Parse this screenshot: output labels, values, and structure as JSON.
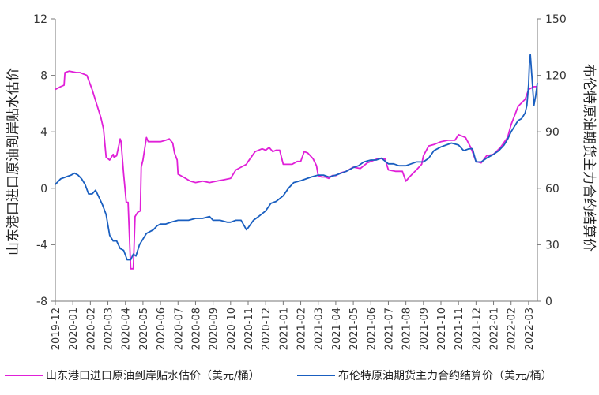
{
  "chart_data": {
    "type": "line",
    "title": "",
    "y_left": {
      "label": "山东港口进口原油到岸贴水估价",
      "range": [
        -8,
        12
      ],
      "ticks": [
        "-8",
        "-4",
        "0",
        "4",
        "8",
        "12"
      ]
    },
    "y_right": {
      "label": "布伦特原油期货主力合约结算价",
      "range": [
        0,
        150
      ],
      "ticks": [
        "0",
        "30",
        "60",
        "90",
        "120",
        "150"
      ]
    },
    "x_ticks": [
      "2019-12",
      "2020-01",
      "2020-02",
      "2020-03",
      "2020-04",
      "2020-05",
      "2020-06",
      "2020-07",
      "2020-08",
      "2020-09",
      "2020-10",
      "2020-11",
      "2020-12",
      "2021-01",
      "2021-02",
      "2021-03",
      "2021-04",
      "2021-05",
      "2021-06",
      "2021-07",
      "2021-08",
      "2021-09",
      "2021-10",
      "2021-11",
      "2021-12",
      "2022-01",
      "2022-02",
      "2022-03"
    ],
    "grid": false,
    "legend_position": "bottom",
    "series": [
      {
        "name": "山东港口进口原油到岸贴水估价（美元/桶）",
        "axis": "left",
        "color": "#e020d8",
        "x": [
          0,
          0.3,
          0.5,
          0.55,
          0.8,
          1.2,
          1.4,
          1.8,
          2.1,
          2.3,
          2.35,
          2.6,
          2.75,
          2.9,
          3.1,
          3.3,
          3.35,
          3.5,
          3.7,
          3.75,
          3.9,
          4.05,
          4.15,
          4.3,
          4.45,
          4.55,
          4.7,
          4.85,
          4.9,
          5.0,
          5.2,
          5.3,
          5.5,
          5.8,
          6.0,
          6.3,
          6.5,
          6.7,
          6.8,
          6.95,
          7.0,
          7.3,
          7.7,
          8.0,
          8.4,
          8.8,
          9.2,
          9.6,
          10.0,
          10.3,
          10.6,
          10.9,
          11.0,
          11.4,
          11.8,
          12.0,
          12.2,
          12.4,
          12.6,
          12.8,
          13.0,
          13.5,
          13.8,
          14.0,
          14.2,
          14.4,
          14.7,
          14.9,
          15.0,
          15.2,
          15.4,
          15.6,
          15.8,
          16.0,
          16.3,
          16.6,
          17.0,
          17.4,
          17.8,
          18.0,
          18.4,
          18.8,
          19.0,
          19.4,
          19.8,
          20.0,
          20.2,
          20.6,
          20.9,
          21.0,
          21.3,
          21.6,
          22.0,
          22.4,
          22.8,
          23.0,
          23.4,
          23.7,
          24.0,
          24.3,
          24.6,
          25.0,
          25.4,
          25.8,
          26.0,
          26.4,
          26.8,
          27.0,
          27.3,
          27.5
        ],
        "values": [
          7.0,
          7.2,
          7.3,
          8.2,
          8.3,
          8.2,
          8.2,
          8.0,
          7.0,
          6.2,
          6.0,
          5.0,
          4.2,
          2.2,
          2.0,
          2.4,
          2.2,
          2.3,
          3.5,
          3.3,
          1.0,
          -1.0,
          -1.0,
          -5.7,
          -5.7,
          -2.0,
          -1.7,
          -1.6,
          1.5,
          2.0,
          3.6,
          3.3,
          3.3,
          3.3,
          3.3,
          3.4,
          3.5,
          3.2,
          2.5,
          2.0,
          1.0,
          0.8,
          0.5,
          0.4,
          0.5,
          0.4,
          0.5,
          0.6,
          0.7,
          1.3,
          1.5,
          1.7,
          1.9,
          2.6,
          2.8,
          2.7,
          2.9,
          2.6,
          2.7,
          2.7,
          1.7,
          1.7,
          1.9,
          1.9,
          2.6,
          2.5,
          2.1,
          1.6,
          0.9,
          0.8,
          0.8,
          0.7,
          0.9,
          0.9,
          1.1,
          1.2,
          1.5,
          1.4,
          1.8,
          1.9,
          2.1,
          2.1,
          1.3,
          1.2,
          1.2,
          0.5,
          0.8,
          1.3,
          1.7,
          2.3,
          3.0,
          3.1,
          3.3,
          3.4,
          3.4,
          3.8,
          3.6,
          2.9,
          1.9,
          1.8,
          2.3,
          2.4,
          2.9,
          3.6,
          4.5,
          5.8,
          6.3,
          7.0,
          7.2,
          7.2
        ]
      },
      {
        "name": "布伦特原油期货主力合约结算价（美元/桶）",
        "axis": "right",
        "color": "#1a5fc0",
        "x": [
          0,
          0.3,
          0.6,
          0.9,
          1.1,
          1.3,
          1.5,
          1.7,
          1.9,
          2.1,
          2.3,
          2.5,
          2.7,
          2.9,
          3.1,
          3.3,
          3.5,
          3.7,
          3.9,
          4.1,
          4.3,
          4.45,
          4.6,
          4.8,
          5.0,
          5.2,
          5.4,
          5.6,
          5.8,
          6.0,
          6.3,
          6.6,
          7.0,
          7.3,
          7.6,
          8.0,
          8.4,
          8.8,
          9.0,
          9.4,
          9.8,
          10.0,
          10.3,
          10.6,
          10.9,
          11.0,
          11.3,
          11.6,
          12.0,
          12.3,
          12.6,
          13.0,
          13.3,
          13.6,
          14.0,
          14.3,
          14.6,
          15.0,
          15.3,
          15.6,
          16.0,
          16.3,
          16.6,
          17.0,
          17.3,
          17.6,
          18.0,
          18.3,
          18.6,
          19.0,
          19.3,
          19.6,
          20.0,
          20.3,
          20.6,
          21.0,
          21.3,
          21.6,
          22.0,
          22.3,
          22.6,
          23.0,
          23.3,
          23.6,
          23.8,
          24.0,
          24.3,
          24.6,
          25.0,
          25.3,
          25.6,
          25.8,
          26.0,
          26.2,
          26.4,
          26.6,
          26.8,
          26.9,
          27.0,
          27.05,
          27.1,
          27.2,
          27.3,
          27.4,
          27.5
        ],
        "values": [
          62,
          65,
          66,
          67,
          68,
          67,
          65,
          62,
          57,
          57,
          59,
          55,
          51,
          46,
          35,
          32,
          32,
          28,
          27,
          22,
          22,
          25,
          24,
          30,
          33,
          36,
          37,
          38,
          40,
          41,
          41,
          42,
          43,
          43,
          43,
          44,
          44,
          45,
          43,
          43,
          42,
          42,
          43,
          43,
          38,
          39,
          43,
          45,
          48,
          52,
          53,
          56,
          60,
          63,
          64,
          65,
          66,
          67,
          67,
          66,
          67,
          68,
          69,
          71,
          72,
          74,
          75,
          75,
          76,
          73,
          73,
          72,
          72,
          73,
          74,
          74,
          76,
          80,
          82,
          83,
          84,
          83,
          80,
          81,
          81,
          74,
          74,
          76,
          78,
          80,
          83,
          86,
          90,
          93,
          96,
          97,
          100,
          104,
          115,
          127,
          131,
          118,
          104,
          109,
          116
        ]
      }
    ]
  }
}
